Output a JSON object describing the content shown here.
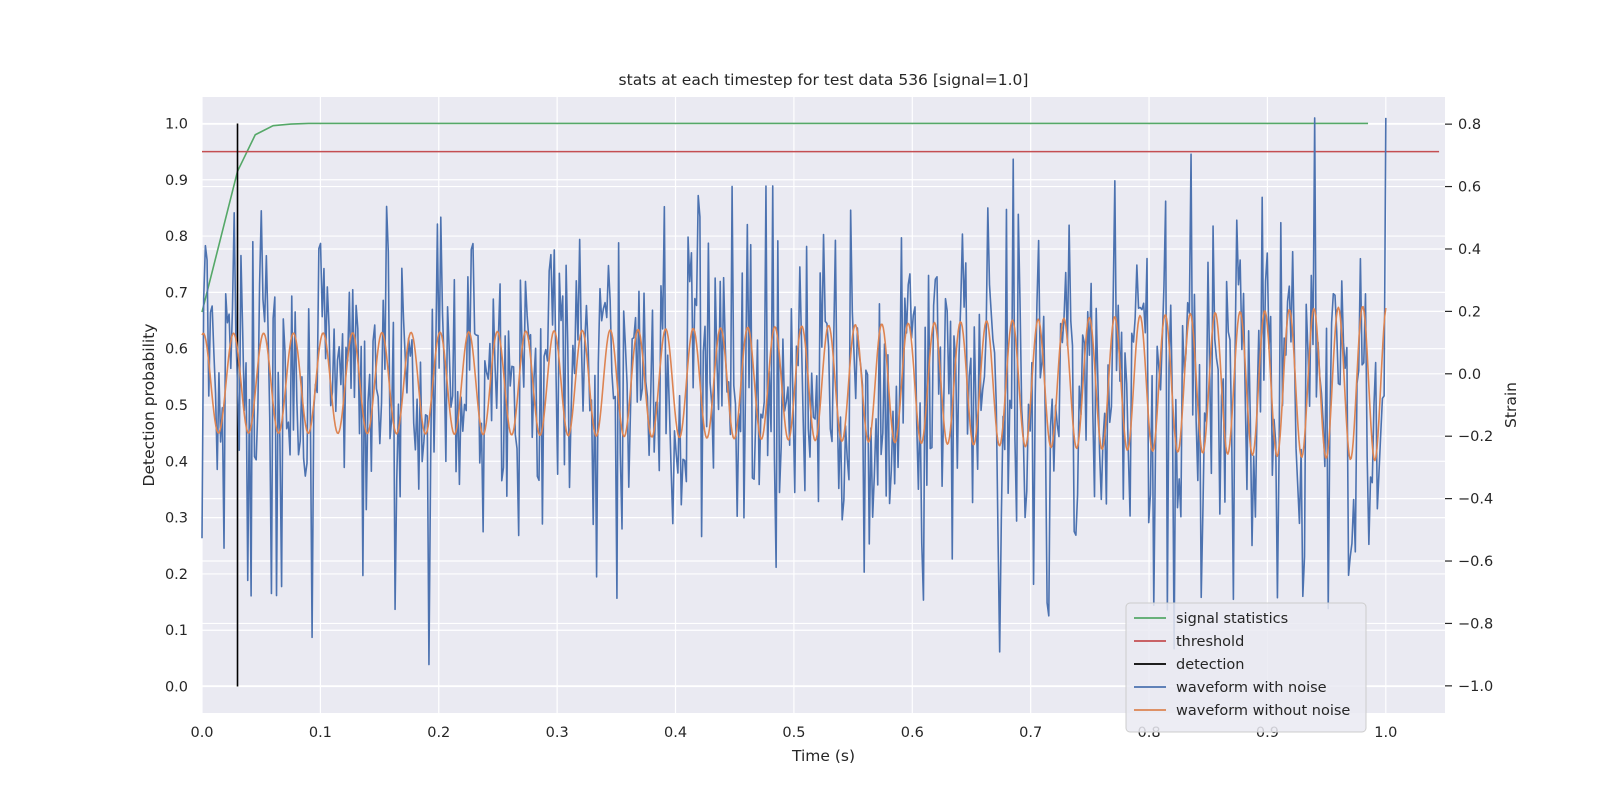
{
  "chart_data": {
    "type": "line",
    "title": "stats at each timestep for test data 536 [signal=1.0]",
    "xlabel": "Time (s)",
    "ylabel_left": "Detection probability",
    "ylabel_right": "Strain",
    "xlim": [
      0.0,
      1.05
    ],
    "ylim_left": [
      -0.047,
      1.047
    ],
    "ylim_right": [
      -1.087,
      0.887
    ],
    "x_ticks": [
      "0.0",
      "0.1",
      "0.2",
      "0.3",
      "0.4",
      "0.5",
      "0.6",
      "0.7",
      "0.8",
      "0.9",
      "1.0"
    ],
    "y_ticks_left": [
      "0.0",
      "0.1",
      "0.2",
      "0.3",
      "0.4",
      "0.5",
      "0.6",
      "0.7",
      "0.8",
      "0.9",
      "1.0"
    ],
    "y_ticks_right": [
      "−1.0",
      "−0.8",
      "−0.6",
      "−0.4",
      "−0.2",
      "0.0",
      "0.2",
      "0.4",
      "0.6",
      "0.8"
    ],
    "grid": true,
    "legend_position": "lower-right",
    "series": [
      {
        "name": "signal statistics",
        "axis": "left",
        "color": "#55a868",
        "x": [
          0.0,
          0.015,
          0.03,
          0.045,
          0.06,
          0.075,
          0.09,
          0.12,
          0.2,
          0.4,
          0.6,
          0.8,
          0.985
        ],
        "y": [
          0.665,
          0.79,
          0.915,
          0.98,
          0.996,
          0.999,
          1.0,
          1.0,
          1.0,
          1.0,
          1.0,
          1.0,
          1.0
        ]
      },
      {
        "name": "threshold",
        "axis": "left",
        "color": "#c44e52",
        "x": [
          0.0,
          1.045
        ],
        "y": [
          0.95,
          0.95
        ]
      },
      {
        "name": "detection",
        "axis": "left",
        "color": "#000000",
        "x": [
          0.03,
          0.03
        ],
        "y": [
          0.0,
          1.0
        ]
      },
      {
        "name": "waveform with noise",
        "axis": "right",
        "color": "#4c72b0",
        "x_range": [
          0.0,
          1.0
        ],
        "points": 700,
        "sigma": 0.27,
        "seed": 536,
        "y_range": [
          -1.0,
          0.82
        ]
      },
      {
        "name": "waveform without noise",
        "axis": "right",
        "color": "#dd8452",
        "x_range": [
          0.0,
          1.0
        ],
        "points": 1200,
        "frequency_start_hz": 39,
        "frequency_end_hz": 49,
        "amplitude_start": 0.16,
        "amplitude_end": 0.25,
        "offset": -0.03,
        "phase_start_rad": 1.3
      }
    ]
  }
}
